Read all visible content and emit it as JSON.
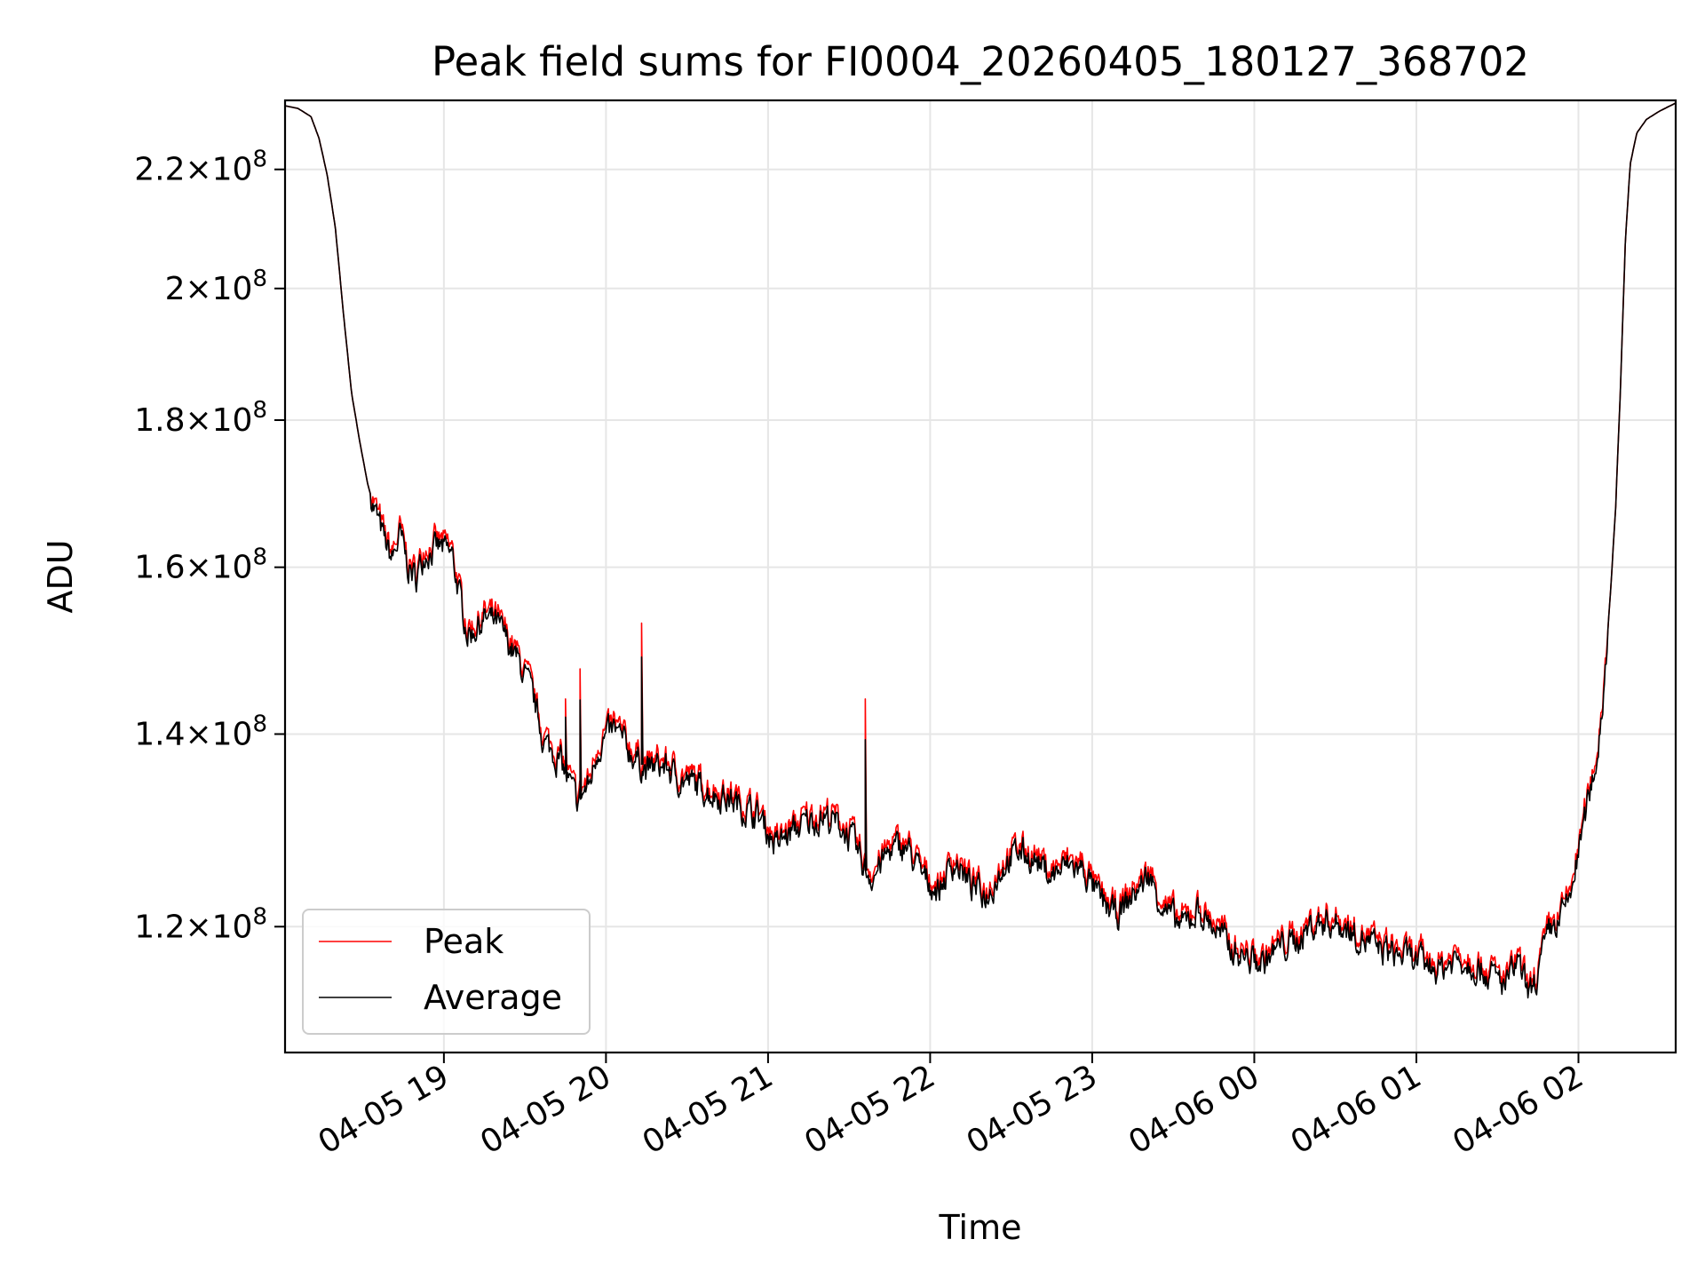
{
  "chart_data": {
    "type": "line",
    "title": "Peak field sums for FI0004_20260405_180127_368702",
    "xlabel": "Time",
    "ylabel": "ADU",
    "yscale": "log",
    "ylim": [
      108500000,
      232500000
    ],
    "xlim_hours": [
      -0.98,
      7.6
    ],
    "x_unit": "hours since 2026-04-05 19:00",
    "grid": true,
    "legend_position": "lower-left",
    "yticks": [
      {
        "value": 120000000,
        "mantissa": "1.2",
        "exponent": "8"
      },
      {
        "value": 140000000,
        "mantissa": "1.4",
        "exponent": "8"
      },
      {
        "value": 160000000,
        "mantissa": "1.6",
        "exponent": "8"
      },
      {
        "value": 180000000,
        "mantissa": "1.8",
        "exponent": "8"
      },
      {
        "value": 200000000,
        "mantissa": "2",
        "exponent": "8"
      },
      {
        "value": 220000000,
        "mantissa": "2.2",
        "exponent": "8"
      }
    ],
    "xticks": [
      {
        "hour": 0,
        "label": "04-05 19"
      },
      {
        "hour": 1,
        "label": "04-05 20"
      },
      {
        "hour": 2,
        "label": "04-05 21"
      },
      {
        "hour": 3,
        "label": "04-05 22"
      },
      {
        "hour": 4,
        "label": "04-05 23"
      },
      {
        "hour": 5,
        "label": "04-06 00"
      },
      {
        "hour": 6,
        "label": "04-06 01"
      },
      {
        "hour": 7,
        "label": "04-06 02"
      }
    ],
    "series": [
      {
        "name": "Peak",
        "color": "#ff0000",
        "spikes": [
          {
            "hour": 0.75,
            "value": 144000000
          },
          {
            "hour": 0.84,
            "value": 147500000
          },
          {
            "hour": 1.22,
            "value": 153000000
          },
          {
            "hour": 1.39,
            "value": 136500000
          },
          {
            "hour": 2.6,
            "value": 144000000
          }
        ]
      },
      {
        "name": "Average",
        "color": "#000000",
        "points": [
          [
            -0.98,
            231500000
          ],
          [
            -0.9,
            231000000
          ],
          [
            -0.82,
            229500000
          ],
          [
            -0.77,
            225500000
          ],
          [
            -0.72,
            219000000
          ],
          [
            -0.67,
            210000000
          ],
          [
            -0.62,
            196000000
          ],
          [
            -0.57,
            184000000
          ],
          [
            -0.52,
            177000000
          ],
          [
            -0.47,
            171000000
          ],
          [
            -0.42,
            167000000
          ],
          [
            -0.37,
            163500000
          ],
          [
            -0.32,
            161000000
          ],
          [
            -0.27,
            164000000
          ],
          [
            -0.22,
            160000000
          ],
          [
            -0.17,
            158500000
          ],
          [
            -0.12,
            162000000
          ],
          [
            -0.02,
            162500000
          ],
          [
            0.05,
            161500000
          ],
          [
            0.1,
            156000000
          ],
          [
            0.15,
            151500000
          ],
          [
            0.25,
            153500000
          ],
          [
            0.32,
            153000000
          ],
          [
            0.4,
            150500000
          ],
          [
            0.48,
            147500000
          ],
          [
            0.55,
            144000000
          ],
          [
            0.62,
            139000000
          ],
          [
            0.72,
            137000000
          ],
          [
            0.82,
            132500000
          ],
          [
            0.9,
            134500000
          ],
          [
            0.95,
            138500000
          ],
          [
            1.05,
            140500000
          ],
          [
            1.15,
            138000000
          ],
          [
            1.25,
            136000000
          ],
          [
            1.35,
            136500000
          ],
          [
            1.45,
            135000000
          ],
          [
            1.55,
            134500000
          ],
          [
            1.65,
            133500000
          ],
          [
            1.75,
            133000000
          ],
          [
            1.85,
            132000000
          ],
          [
            1.95,
            131000000
          ],
          [
            2.05,
            128000000
          ],
          [
            2.15,
            129500000
          ],
          [
            2.25,
            130500000
          ],
          [
            2.35,
            131000000
          ],
          [
            2.45,
            130000000
          ],
          [
            2.52,
            128500000
          ],
          [
            2.6,
            125500000
          ],
          [
            2.65,
            125000000
          ],
          [
            2.75,
            127500000
          ],
          [
            2.85,
            128000000
          ],
          [
            2.95,
            125000000
          ],
          [
            3.05,
            123500000
          ],
          [
            3.15,
            126500000
          ],
          [
            3.25,
            124000000
          ],
          [
            3.35,
            123000000
          ],
          [
            3.45,
            126000000
          ],
          [
            3.55,
            127500000
          ],
          [
            3.65,
            126500000
          ],
          [
            3.75,
            125000000
          ],
          [
            3.85,
            126000000
          ],
          [
            3.95,
            125500000
          ],
          [
            4.05,
            122500000
          ],
          [
            4.15,
            121000000
          ],
          [
            4.25,
            123000000
          ],
          [
            4.35,
            125000000
          ],
          [
            4.45,
            121500000
          ],
          [
            4.55,
            120000000
          ],
          [
            4.65,
            121500000
          ],
          [
            4.75,
            120000000
          ],
          [
            4.85,
            118000000
          ],
          [
            4.95,
            117000000
          ],
          [
            5.05,
            116500000
          ],
          [
            5.15,
            118000000
          ],
          [
            5.25,
            118500000
          ],
          [
            5.35,
            120000000
          ],
          [
            5.45,
            120500000
          ],
          [
            5.55,
            120000000
          ],
          [
            5.65,
            119000000
          ],
          [
            5.75,
            118000000
          ],
          [
            5.85,
            117500000
          ],
          [
            5.95,
            117000000
          ],
          [
            6.05,
            116500000
          ],
          [
            6.15,
            116000000
          ],
          [
            6.25,
            117000000
          ],
          [
            6.35,
            116500000
          ],
          [
            6.45,
            115500000
          ],
          [
            6.55,
            114500000
          ],
          [
            6.62,
            116500000
          ],
          [
            6.7,
            113500000
          ],
          [
            6.75,
            115500000
          ],
          [
            6.82,
            119500000
          ],
          [
            6.88,
            120500000
          ],
          [
            6.95,
            123000000
          ],
          [
            7.02,
            129000000
          ],
          [
            7.08,
            134500000
          ],
          [
            7.12,
            138000000
          ],
          [
            7.16,
            146000000
          ],
          [
            7.2,
            157500000
          ],
          [
            7.23,
            168000000
          ],
          [
            7.26,
            185000000
          ],
          [
            7.29,
            208000000
          ],
          [
            7.32,
            221000000
          ],
          [
            7.36,
            226500000
          ],
          [
            7.42,
            229000000
          ],
          [
            7.5,
            230500000
          ],
          [
            7.6,
            232000000
          ]
        ]
      }
    ]
  }
}
